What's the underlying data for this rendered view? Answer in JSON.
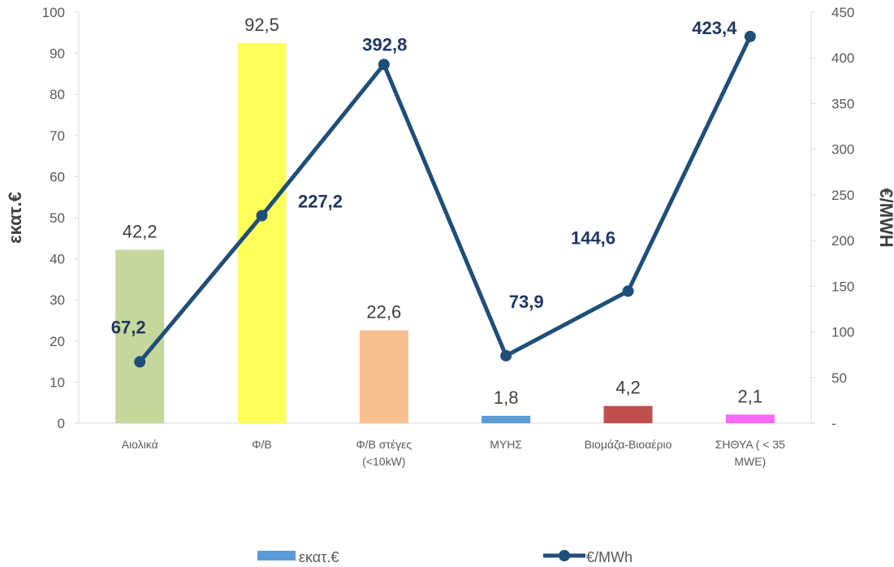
{
  "chart_data": {
    "type": "bar",
    "categories": [
      [
        "Αιολικά"
      ],
      [
        "Φ/Β"
      ],
      [
        "Φ/Β στέγες",
        "(<10kW)"
      ],
      [
        "ΜΥΗΣ"
      ],
      [
        "Βιομάζα-Βιοαέριο"
      ],
      [
        "ΣΗΘΥΑ ( < 35",
        "MWE)"
      ]
    ],
    "series": [
      {
        "name": "εκατ.€",
        "type": "bar",
        "axis": "left",
        "values": [
          42.2,
          92.5,
          22.6,
          1.8,
          4.2,
          2.1
        ],
        "labels": [
          "42,2",
          "92,5",
          "22,6",
          "1,8",
          "4,2",
          "2,1"
        ],
        "colors": [
          "#c5d79b",
          "#ffff5b",
          "#f8c08f",
          "#5b9bd5",
          "#c0504d",
          "#ff66ff"
        ]
      },
      {
        "name": "€/MWh",
        "type": "line",
        "axis": "right",
        "values": [
          67.2,
          227.2,
          392.8,
          73.9,
          144.6,
          423.4
        ],
        "labels": [
          "67,2",
          "227,2",
          "392,8",
          "73,9",
          "144,6",
          "423,4"
        ],
        "color": "#1f4e79"
      }
    ],
    "ylabel": "εκατ.€",
    "y2label": "€/MWH",
    "ylim": [
      0,
      100
    ],
    "y2lim": [
      0,
      450
    ],
    "yticks": [
      "0",
      "10",
      "20",
      "30",
      "40",
      "50",
      "60",
      "70",
      "80",
      "90",
      "100"
    ],
    "y2ticks": [
      "-",
      "50",
      "100",
      "150",
      "200",
      "250",
      "300",
      "350",
      "400",
      "450"
    ],
    "legend_position": "bottom",
    "legend_swatch_color": "#5b9bd5",
    "grid": false
  }
}
